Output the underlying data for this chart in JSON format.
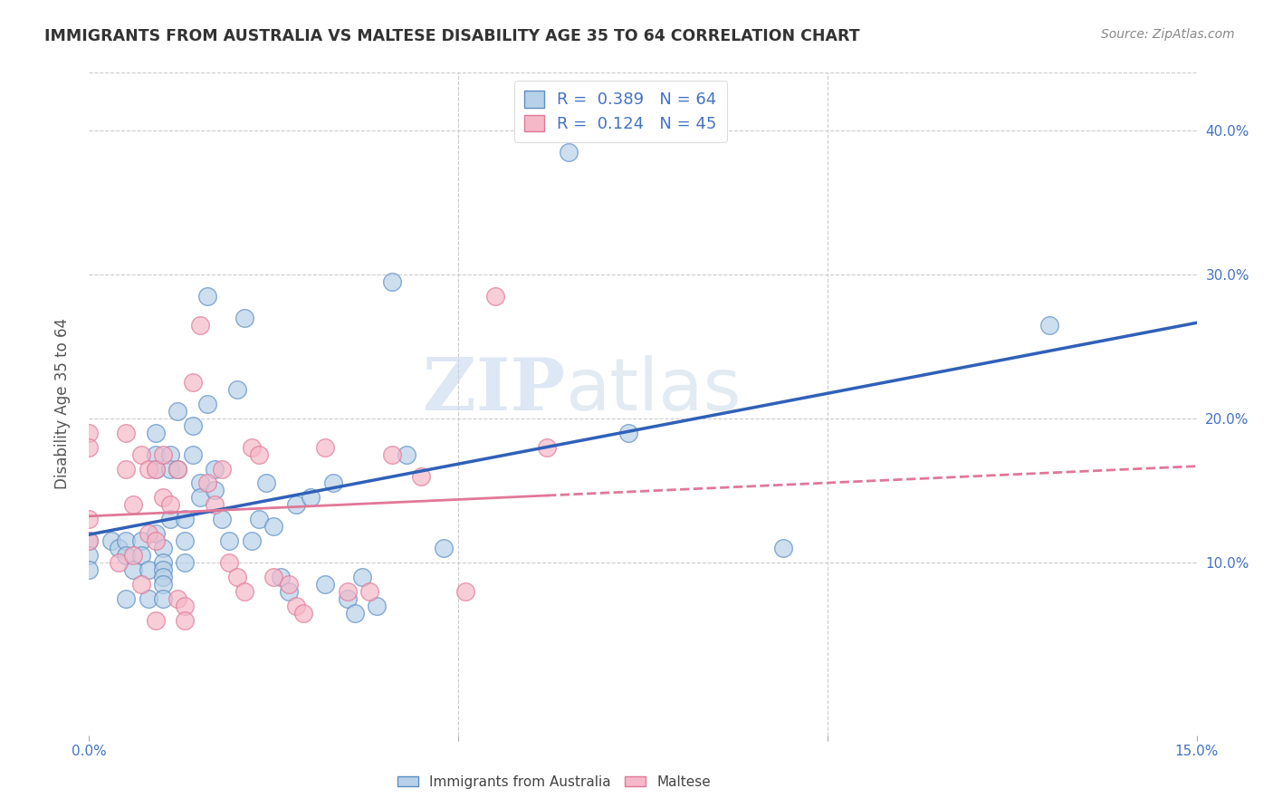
{
  "title": "IMMIGRANTS FROM AUSTRALIA VS MALTESE DISABILITY AGE 35 TO 64 CORRELATION CHART",
  "source": "Source: ZipAtlas.com",
  "ylabel": "Disability Age 35 to 64",
  "xlim": [
    0.0,
    0.15
  ],
  "ylim": [
    -0.02,
    0.44
  ],
  "x_ticks": [
    0.0,
    0.05,
    0.1,
    0.15
  ],
  "x_tick_labels": [
    "0.0%",
    "",
    "",
    "15.0%"
  ],
  "y_ticks": [
    0.1,
    0.2,
    0.3,
    0.4
  ],
  "y_tick_labels": [
    "10.0%",
    "20.0%",
    "30.0%",
    "40.0%"
  ],
  "r1": 0.389,
  "n1": 64,
  "r2": 0.124,
  "n2": 45,
  "color_australia_face": "#b8d0e8",
  "color_australia_edge": "#5b8ec4",
  "color_maltese_face": "#f5b8c8",
  "color_maltese_edge": "#e07898",
  "color_line_australia": "#3060b8",
  "color_line_maltese": "#e07898",
  "watermark_zip": "ZIP",
  "watermark_atlas": "atlas",
  "australia_x": [
    0.0,
    0.0,
    0.0,
    0.003,
    0.004,
    0.005,
    0.005,
    0.005,
    0.006,
    0.007,
    0.007,
    0.008,
    0.008,
    0.009,
    0.009,
    0.009,
    0.009,
    0.01,
    0.01,
    0.01,
    0.01,
    0.01,
    0.01,
    0.011,
    0.011,
    0.011,
    0.012,
    0.012,
    0.013,
    0.013,
    0.013,
    0.014,
    0.014,
    0.015,
    0.015,
    0.016,
    0.016,
    0.017,
    0.017,
    0.018,
    0.019,
    0.02,
    0.021,
    0.022,
    0.023,
    0.024,
    0.025,
    0.026,
    0.027,
    0.028,
    0.03,
    0.032,
    0.033,
    0.035,
    0.036,
    0.037,
    0.039,
    0.041,
    0.043,
    0.048,
    0.065,
    0.073,
    0.094,
    0.13
  ],
  "australia_y": [
    0.115,
    0.105,
    0.095,
    0.115,
    0.11,
    0.115,
    0.105,
    0.075,
    0.095,
    0.115,
    0.105,
    0.095,
    0.075,
    0.19,
    0.175,
    0.165,
    0.12,
    0.11,
    0.1,
    0.095,
    0.09,
    0.085,
    0.075,
    0.175,
    0.165,
    0.13,
    0.205,
    0.165,
    0.115,
    0.13,
    0.1,
    0.195,
    0.175,
    0.155,
    0.145,
    0.285,
    0.21,
    0.165,
    0.15,
    0.13,
    0.115,
    0.22,
    0.27,
    0.115,
    0.13,
    0.155,
    0.125,
    0.09,
    0.08,
    0.14,
    0.145,
    0.085,
    0.155,
    0.075,
    0.065,
    0.09,
    0.07,
    0.295,
    0.175,
    0.11,
    0.385,
    0.19,
    0.11,
    0.265
  ],
  "maltese_x": [
    0.0,
    0.0,
    0.0,
    0.0,
    0.004,
    0.005,
    0.005,
    0.006,
    0.006,
    0.007,
    0.007,
    0.008,
    0.008,
    0.009,
    0.009,
    0.009,
    0.01,
    0.01,
    0.011,
    0.012,
    0.012,
    0.013,
    0.013,
    0.014,
    0.015,
    0.016,
    0.017,
    0.018,
    0.019,
    0.02,
    0.021,
    0.022,
    0.023,
    0.025,
    0.027,
    0.028,
    0.029,
    0.032,
    0.035,
    0.038,
    0.041,
    0.045,
    0.051,
    0.055,
    0.062
  ],
  "maltese_y": [
    0.19,
    0.18,
    0.13,
    0.115,
    0.1,
    0.19,
    0.165,
    0.14,
    0.105,
    0.175,
    0.085,
    0.165,
    0.12,
    0.165,
    0.115,
    0.06,
    0.175,
    0.145,
    0.14,
    0.165,
    0.075,
    0.07,
    0.06,
    0.225,
    0.265,
    0.155,
    0.14,
    0.165,
    0.1,
    0.09,
    0.08,
    0.18,
    0.175,
    0.09,
    0.085,
    0.07,
    0.065,
    0.18,
    0.08,
    0.08,
    0.175,
    0.16,
    0.08,
    0.285,
    0.18
  ]
}
